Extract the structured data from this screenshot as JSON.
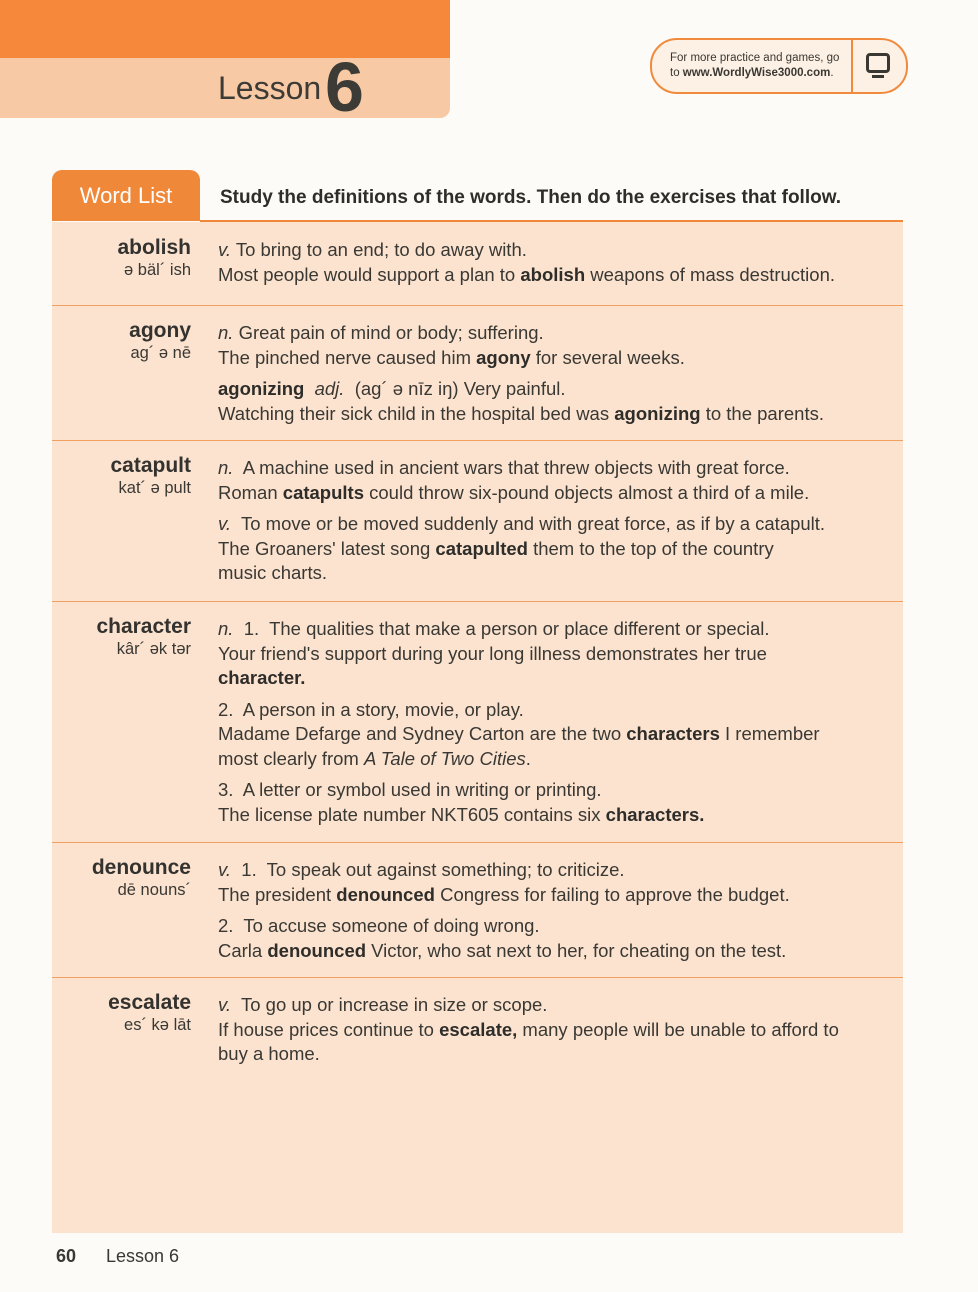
{
  "header": {
    "lesson_word": "Lesson",
    "lesson_number": "6",
    "promo_line1": "For more practice and games, go",
    "promo_line2_prefix": "to ",
    "promo_url": "www.WordlyWise3000.com",
    "promo_line2_suffix": ".",
    "promo_icon": "computer-monitor-icon"
  },
  "word_list": {
    "tab_label": "Word List",
    "instructions": "Study the definitions of the words. Then do the exercises that follow.",
    "entries": [
      {
        "word": "abolish",
        "pron": "ə bäl´ ish",
        "senses": [
          [
            [
              {
                "t": "v.",
                "i": true
              },
              {
                "t": " To bring to an end; to do away with."
              }
            ],
            [
              {
                "t": "Most people would support a plan to "
              },
              {
                "t": "abolish",
                "b": true
              },
              {
                "t": " weapons of mass destruction."
              }
            ]
          ]
        ]
      },
      {
        "word": "agony",
        "pron": "ag´ ə nē",
        "senses": [
          [
            [
              {
                "t": "n.",
                "i": true
              },
              {
                "t": " Great pain of mind or body; suffering."
              }
            ],
            [
              {
                "t": "The pinched nerve caused him "
              },
              {
                "t": "agony",
                "b": true
              },
              {
                "t": " for several weeks."
              }
            ]
          ],
          [
            [
              {
                "t": "agonizing",
                "b": true
              },
              {
                "t": "  "
              },
              {
                "t": "adj.",
                "i": true
              },
              {
                "t": "  (ag´ ə nīz iŋ) Very painful."
              }
            ],
            [
              {
                "t": "Watching their sick child in the hospital bed was "
              },
              {
                "t": "agonizing",
                "b": true
              },
              {
                "t": " to the parents."
              }
            ]
          ]
        ]
      },
      {
        "word": "catapult",
        "pron": "kat´ ə pult",
        "senses": [
          [
            [
              {
                "t": "n.",
                "i": true
              },
              {
                "t": "  A machine used in ancient wars that threw objects with great force."
              }
            ],
            [
              {
                "t": "Roman "
              },
              {
                "t": "catapults",
                "b": true
              },
              {
                "t": " could throw six-pound objects almost a third of a mile."
              }
            ]
          ],
          [
            [
              {
                "t": "v.",
                "i": true
              },
              {
                "t": "  To move or be moved suddenly and with great force, as if by a catapult."
              }
            ],
            [
              {
                "t": "The Groaners' latest song "
              },
              {
                "t": "catapulted",
                "b": true
              },
              {
                "t": " them to the top of the country"
              }
            ],
            [
              {
                "t": "music charts."
              }
            ]
          ]
        ]
      },
      {
        "word": "character",
        "pron": "kâr´ ək tər",
        "senses": [
          [
            [
              {
                "t": "n.",
                "i": true
              },
              {
                "t": "  1.  The qualities that make a person or place different or special."
              }
            ],
            [
              {
                "t": "Your friend's support during your long illness demonstrates her true"
              }
            ],
            [
              {
                "t": "character.",
                "b": true
              }
            ]
          ],
          [
            [
              {
                "t": "2.  A person in a story, movie, or play."
              }
            ],
            [
              {
                "t": "Madame Defarge and Sydney Carton are the two "
              },
              {
                "t": "characters",
                "b": true
              },
              {
                "t": " I remember"
              }
            ],
            [
              {
                "t": "most clearly from "
              },
              {
                "t": "A Tale of Two Cities",
                "i": true
              },
              {
                "t": "."
              }
            ]
          ],
          [
            [
              {
                "t": "3.  A letter or symbol used in writing or printing."
              }
            ],
            [
              {
                "t": "The license plate number NKT605 contains six "
              },
              {
                "t": "characters.",
                "b": true
              }
            ]
          ]
        ]
      },
      {
        "word": "denounce",
        "pron": "dē nouns´",
        "senses": [
          [
            [
              {
                "t": "v.",
                "i": true
              },
              {
                "t": "  1.  To speak out against something; to criticize."
              }
            ],
            [
              {
                "t": "The president "
              },
              {
                "t": "denounced",
                "b": true
              },
              {
                "t": " Congress for failing to approve the budget."
              }
            ]
          ],
          [
            [
              {
                "t": "2.  To accuse someone of doing wrong."
              }
            ],
            [
              {
                "t": "Carla "
              },
              {
                "t": "denounced",
                "b": true
              },
              {
                "t": " Victor, who sat next to her, for cheating on the test."
              }
            ]
          ]
        ]
      },
      {
        "word": "escalate",
        "pron": "es´ kə lāt",
        "senses": [
          [
            [
              {
                "t": "v.",
                "i": true
              },
              {
                "t": "  To go up or increase in size or scope."
              }
            ],
            [
              {
                "t": "If house prices continue to "
              },
              {
                "t": "escalate,",
                "b": true
              },
              {
                "t": " many people will be unable to afford to"
              }
            ],
            [
              {
                "t": "buy a home."
              }
            ]
          ]
        ]
      }
    ]
  },
  "footer": {
    "page_number": "60",
    "label": "Lesson 6"
  },
  "colors": {
    "accent": "#f0883a",
    "header_band": "#f5883a",
    "table_bg": "#fbe3d0"
  }
}
